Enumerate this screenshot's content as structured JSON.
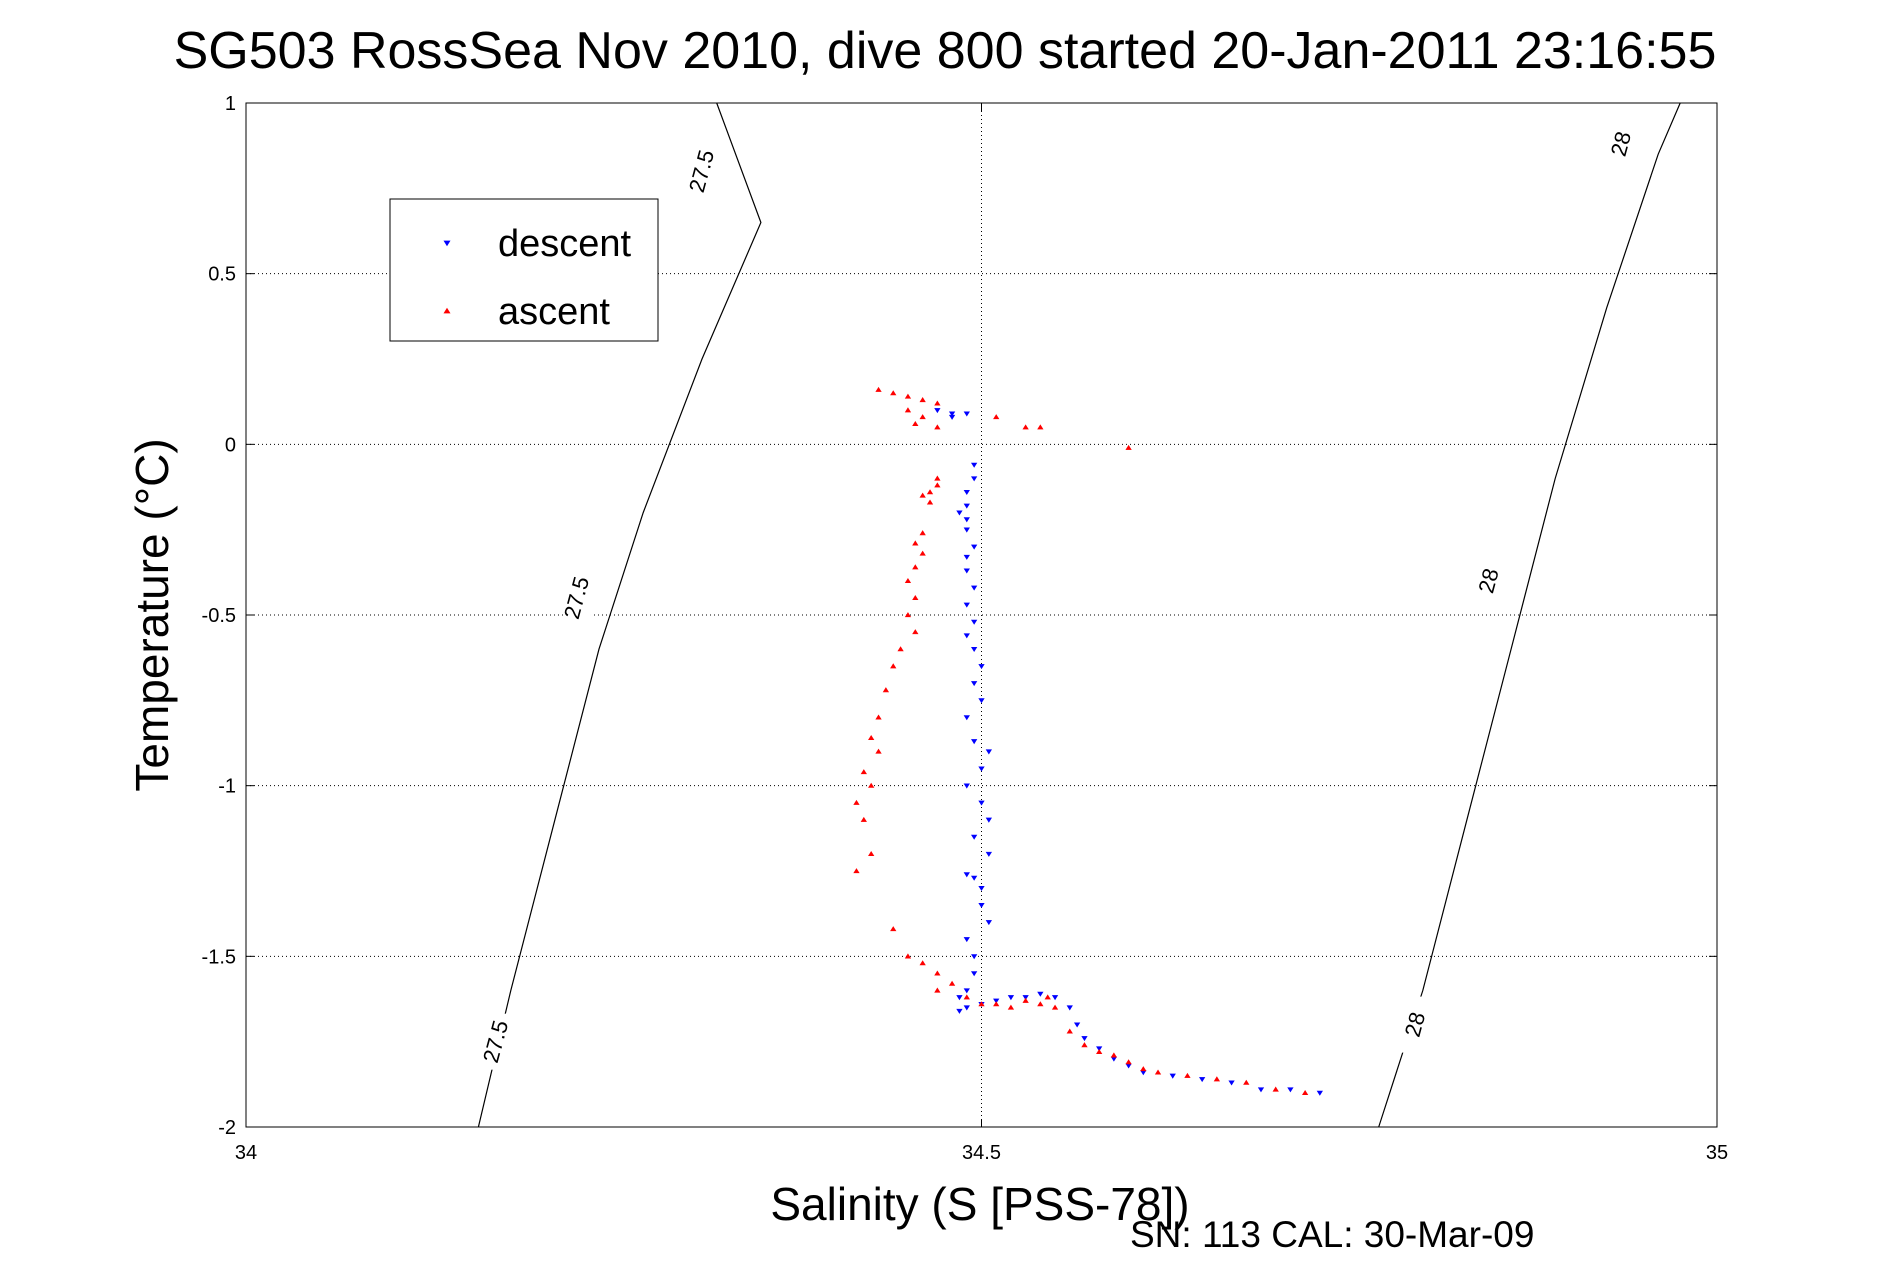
{
  "chart_data": {
    "type": "scatter",
    "title": "SG503 RossSea Nov 2010, dive 800 started 20-Jan-2011 23:16:55",
    "xlabel": "Salinity (S [PSS-78])",
    "ylabel": "Temperature (°C)",
    "xlim": [
      34,
      35
    ],
    "ylim": [
      -2,
      1
    ],
    "xticks": [
      "34",
      "34.5",
      "35"
    ],
    "yticks": [
      "1",
      "0.5",
      "0",
      "-0.5",
      "-1",
      "-1.5",
      "-2"
    ],
    "grid": true,
    "legend_position": "top-left",
    "footnote": "SN: 113  CAL: 30-Mar-09",
    "contours": [
      {
        "label": "27.5",
        "points": [
          [
            34.158,
            -2
          ],
          [
            34.18,
            -1.6
          ],
          [
            34.21,
            -1.1
          ],
          [
            34.24,
            -0.6
          ],
          [
            34.27,
            -0.2
          ],
          [
            34.31,
            0.25
          ],
          [
            34.35,
            0.65
          ],
          [
            34.32,
            1
          ]
        ]
      },
      {
        "label": "28",
        "points": [
          [
            34.77,
            -2
          ],
          [
            34.8,
            -1.6
          ],
          [
            34.83,
            -1.1
          ],
          [
            34.86,
            -0.6
          ],
          [
            34.89,
            -0.1
          ],
          [
            34.925,
            0.4
          ],
          [
            34.96,
            0.85
          ],
          [
            34.975,
            1
          ]
        ]
      }
    ],
    "contour_labels": [
      {
        "text": "27.5",
        "x": 34.31,
        "y": 0.8
      },
      {
        "text": "27.5",
        "x": 34.225,
        "y": -0.45
      },
      {
        "text": "27.5",
        "x": 34.17,
        "y": -1.75
      },
      {
        "text": "28",
        "x": 34.935,
        "y": 0.88
      },
      {
        "text": "28",
        "x": 34.845,
        "y": -0.4
      },
      {
        "text": "28",
        "x": 34.795,
        "y": -1.7
      }
    ],
    "series": [
      {
        "name": "descent",
        "color": "#0000ff",
        "marker": "triangle-down",
        "points": [
          [
            34.47,
            0.1
          ],
          [
            34.48,
            0.09
          ],
          [
            34.49,
            0.09
          ],
          [
            34.48,
            0.08
          ],
          [
            34.495,
            -0.06
          ],
          [
            34.495,
            -0.1
          ],
          [
            34.49,
            -0.14
          ],
          [
            34.49,
            -0.18
          ],
          [
            34.485,
            -0.2
          ],
          [
            34.49,
            -0.22
          ],
          [
            34.49,
            -0.25
          ],
          [
            34.495,
            -0.3
          ],
          [
            34.49,
            -0.33
          ],
          [
            34.49,
            -0.37
          ],
          [
            34.495,
            -0.42
          ],
          [
            34.49,
            -0.47
          ],
          [
            34.495,
            -0.52
          ],
          [
            34.49,
            -0.56
          ],
          [
            34.495,
            -0.6
          ],
          [
            34.5,
            -0.65
          ],
          [
            34.495,
            -0.7
          ],
          [
            34.5,
            -0.75
          ],
          [
            34.49,
            -0.8
          ],
          [
            34.495,
            -0.87
          ],
          [
            34.505,
            -0.9
          ],
          [
            34.5,
            -0.95
          ],
          [
            34.49,
            -1.0
          ],
          [
            34.5,
            -1.05
          ],
          [
            34.505,
            -1.1
          ],
          [
            34.495,
            -1.15
          ],
          [
            34.505,
            -1.2
          ],
          [
            34.49,
            -1.26
          ],
          [
            34.495,
            -1.27
          ],
          [
            34.5,
            -1.3
          ],
          [
            34.5,
            -1.35
          ],
          [
            34.505,
            -1.4
          ],
          [
            34.49,
            -1.45
          ],
          [
            34.495,
            -1.5
          ],
          [
            34.495,
            -1.55
          ],
          [
            34.49,
            -1.6
          ],
          [
            34.485,
            -1.62
          ],
          [
            34.49,
            -1.65
          ],
          [
            34.485,
            -1.66
          ],
          [
            34.5,
            -1.64
          ],
          [
            34.51,
            -1.63
          ],
          [
            34.52,
            -1.62
          ],
          [
            34.53,
            -1.62
          ],
          [
            34.54,
            -1.61
          ],
          [
            34.55,
            -1.62
          ],
          [
            34.56,
            -1.65
          ],
          [
            34.565,
            -1.7
          ],
          [
            34.57,
            -1.74
          ],
          [
            34.58,
            -1.77
          ],
          [
            34.59,
            -1.8
          ],
          [
            34.6,
            -1.82
          ],
          [
            34.61,
            -1.84
          ],
          [
            34.63,
            -1.85
          ],
          [
            34.65,
            -1.86
          ],
          [
            34.67,
            -1.87
          ],
          [
            34.69,
            -1.89
          ],
          [
            34.71,
            -1.89
          ],
          [
            34.73,
            -1.9
          ]
        ]
      },
      {
        "name": "ascent",
        "color": "#ff0000",
        "marker": "triangle-up",
        "points": [
          [
            34.43,
            0.16
          ],
          [
            34.44,
            0.15
          ],
          [
            34.45,
            0.14
          ],
          [
            34.46,
            0.13
          ],
          [
            34.47,
            0.12
          ],
          [
            34.45,
            0.1
          ],
          [
            34.46,
            0.08
          ],
          [
            34.455,
            0.06
          ],
          [
            34.47,
            0.05
          ],
          [
            34.51,
            0.08
          ],
          [
            34.53,
            0.05
          ],
          [
            34.54,
            0.05
          ],
          [
            34.6,
            -0.01
          ],
          [
            34.47,
            -0.1
          ],
          [
            34.47,
            -0.12
          ],
          [
            34.465,
            -0.14
          ],
          [
            34.46,
            -0.15
          ],
          [
            34.465,
            -0.17
          ],
          [
            34.46,
            -0.26
          ],
          [
            34.455,
            -0.29
          ],
          [
            34.46,
            -0.32
          ],
          [
            34.455,
            -0.36
          ],
          [
            34.45,
            -0.4
          ],
          [
            34.455,
            -0.45
          ],
          [
            34.45,
            -0.5
          ],
          [
            34.455,
            -0.55
          ],
          [
            34.445,
            -0.6
          ],
          [
            34.44,
            -0.65
          ],
          [
            34.435,
            -0.72
          ],
          [
            34.43,
            -0.8
          ],
          [
            34.425,
            -0.86
          ],
          [
            34.43,
            -0.9
          ],
          [
            34.42,
            -0.96
          ],
          [
            34.425,
            -1.0
          ],
          [
            34.415,
            -1.05
          ],
          [
            34.42,
            -1.1
          ],
          [
            34.425,
            -1.2
          ],
          [
            34.415,
            -1.25
          ],
          [
            34.44,
            -1.42
          ],
          [
            34.45,
            -1.5
          ],
          [
            34.46,
            -1.52
          ],
          [
            34.47,
            -1.55
          ],
          [
            34.48,
            -1.58
          ],
          [
            34.47,
            -1.6
          ],
          [
            34.49,
            -1.62
          ],
          [
            34.5,
            -1.64
          ],
          [
            34.51,
            -1.64
          ],
          [
            34.52,
            -1.65
          ],
          [
            34.53,
            -1.63
          ],
          [
            34.54,
            -1.64
          ],
          [
            34.545,
            -1.62
          ],
          [
            34.55,
            -1.65
          ],
          [
            34.56,
            -1.72
          ],
          [
            34.57,
            -1.76
          ],
          [
            34.58,
            -1.78
          ],
          [
            34.59,
            -1.79
          ],
          [
            34.6,
            -1.81
          ],
          [
            34.61,
            -1.83
          ],
          [
            34.62,
            -1.84
          ],
          [
            34.64,
            -1.85
          ],
          [
            34.66,
            -1.86
          ],
          [
            34.68,
            -1.87
          ],
          [
            34.7,
            -1.89
          ],
          [
            34.72,
            -1.9
          ]
        ]
      }
    ]
  }
}
